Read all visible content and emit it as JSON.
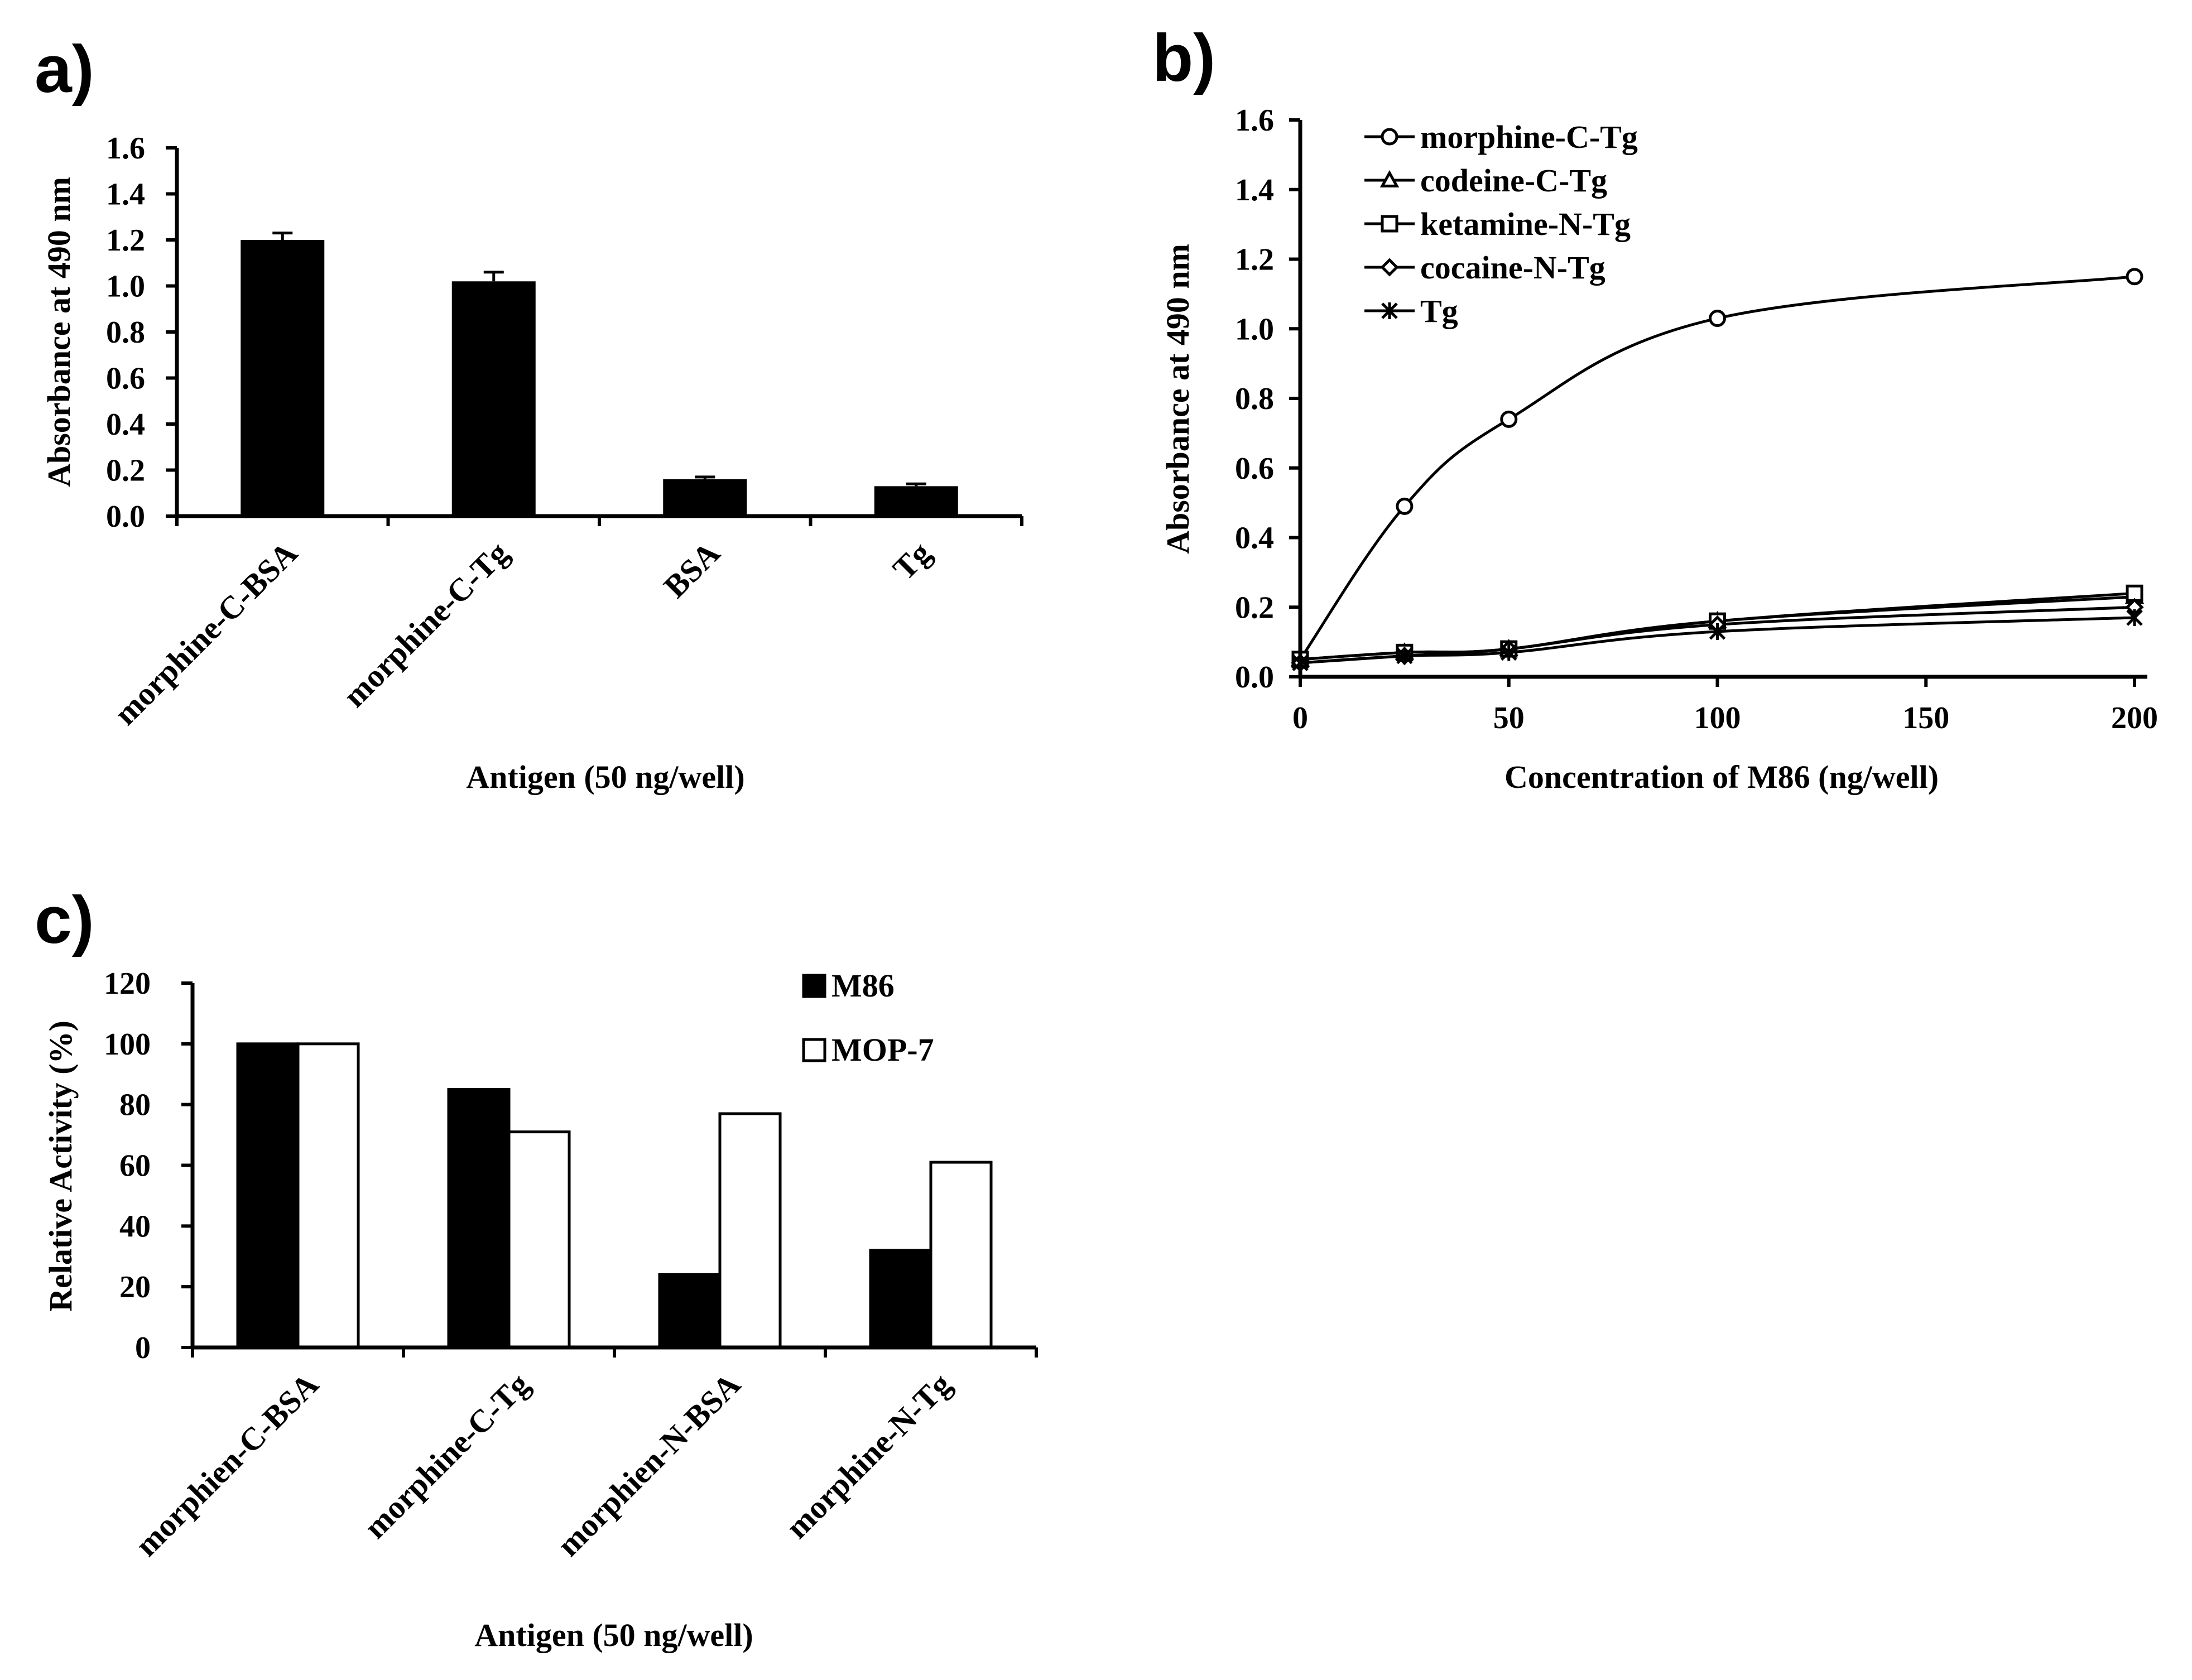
{
  "figure": {
    "panels": [
      "a)",
      "b)",
      "c)"
    ]
  },
  "chart_data": [
    {
      "id": "a",
      "type": "bar",
      "panel_label": "a)",
      "categories": [
        "morphine-C-BSA",
        "morphine-C-Tg",
        "BSA",
        "Tg"
      ],
      "values": [
        1.2,
        1.02,
        0.16,
        0.13
      ],
      "errors": [
        0.03,
        0.04,
        0.01,
        0.01
      ],
      "xlabel": "Antigen (50 ng/well)",
      "ylabel": "Absorbance at 490 nm",
      "ylim": [
        0,
        1.6
      ],
      "yticks": [
        "0.0",
        "0.2",
        "0.4",
        "0.6",
        "0.8",
        "1.0",
        "1.2",
        "1.4",
        "1.6"
      ],
      "bar_color": "#000000"
    },
    {
      "id": "b",
      "type": "line",
      "panel_label": "b)",
      "x": [
        0,
        25,
        50,
        100,
        200
      ],
      "series": [
        {
          "name": "morphine-C-Tg",
          "marker": "circle",
          "values": [
            0.05,
            0.49,
            0.74,
            1.03,
            1.15
          ]
        },
        {
          "name": "codeine-C-Tg",
          "marker": "triangle",
          "values": [
            0.05,
            0.07,
            0.08,
            0.16,
            0.23
          ]
        },
        {
          "name": "ketamine-N-Tg",
          "marker": "square",
          "values": [
            0.05,
            0.07,
            0.08,
            0.16,
            0.24
          ]
        },
        {
          "name": "cocaine-N-Tg",
          "marker": "diamond",
          "values": [
            0.04,
            0.06,
            0.08,
            0.15,
            0.2
          ]
        },
        {
          "name": "Tg",
          "marker": "star",
          "values": [
            0.04,
            0.06,
            0.07,
            0.13,
            0.17
          ]
        }
      ],
      "xlabel": "Concentration of M86 (ng/well)",
      "ylabel": "Absorbance at 490 nm",
      "xlim": [
        0,
        200
      ],
      "ylim": [
        0,
        1.6
      ],
      "xticks": [
        "0",
        "50",
        "100",
        "150",
        "200"
      ],
      "yticks": [
        "0.0",
        "0.2",
        "0.4",
        "0.6",
        "0.8",
        "1.0",
        "1.2",
        "1.4",
        "1.6"
      ],
      "legend": "top-left"
    },
    {
      "id": "c",
      "type": "bar",
      "panel_label": "c)",
      "categories": [
        "morphien-C-BSA",
        "morphine-C-Tg",
        "morphien-N-BSA",
        "morphine-N-Tg"
      ],
      "series": [
        {
          "name": "M86",
          "color": "#000000",
          "values": [
            100,
            85,
            24,
            32
          ]
        },
        {
          "name": "MOP-7",
          "color": "#ffffff",
          "values": [
            100,
            71,
            77,
            61
          ]
        }
      ],
      "xlabel": "Antigen (50 ng/well)",
      "ylabel": "Relative Activity (%)",
      "ylim": [
        0,
        120
      ],
      "yticks": [
        "0",
        "20",
        "40",
        "60",
        "80",
        "100",
        "120"
      ],
      "legend": "top-right"
    }
  ]
}
